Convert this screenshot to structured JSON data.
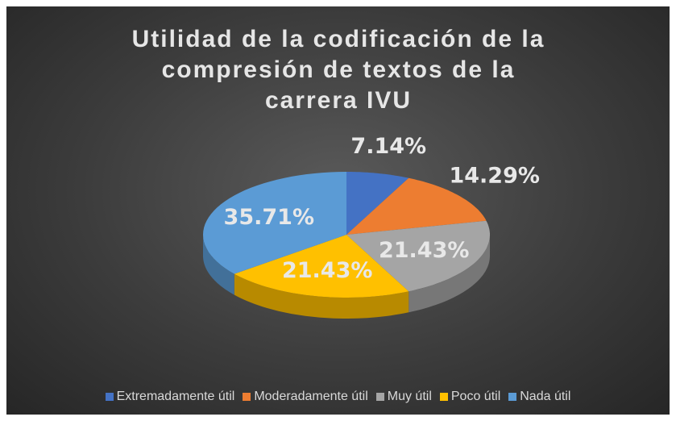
{
  "chart_data": {
    "type": "pie",
    "title": "Utilidad de la codificación de la compresión de textos de la carrera IVU",
    "categories": [
      "Extremadamente útil",
      "Moderadamente útil",
      "Muy útil",
      "Poco útil",
      "Nada útil"
    ],
    "values": [
      7.14,
      14.29,
      21.43,
      21.43,
      35.71
    ],
    "value_labels": [
      "7.14%",
      "14.29%",
      "21.43%",
      "21.43%",
      "35.71%"
    ],
    "colors": [
      "#4472c4",
      "#ed7d31",
      "#a5a5a5",
      "#ffc000",
      "#5b9bd5"
    ],
    "legend": "bottom"
  }
}
